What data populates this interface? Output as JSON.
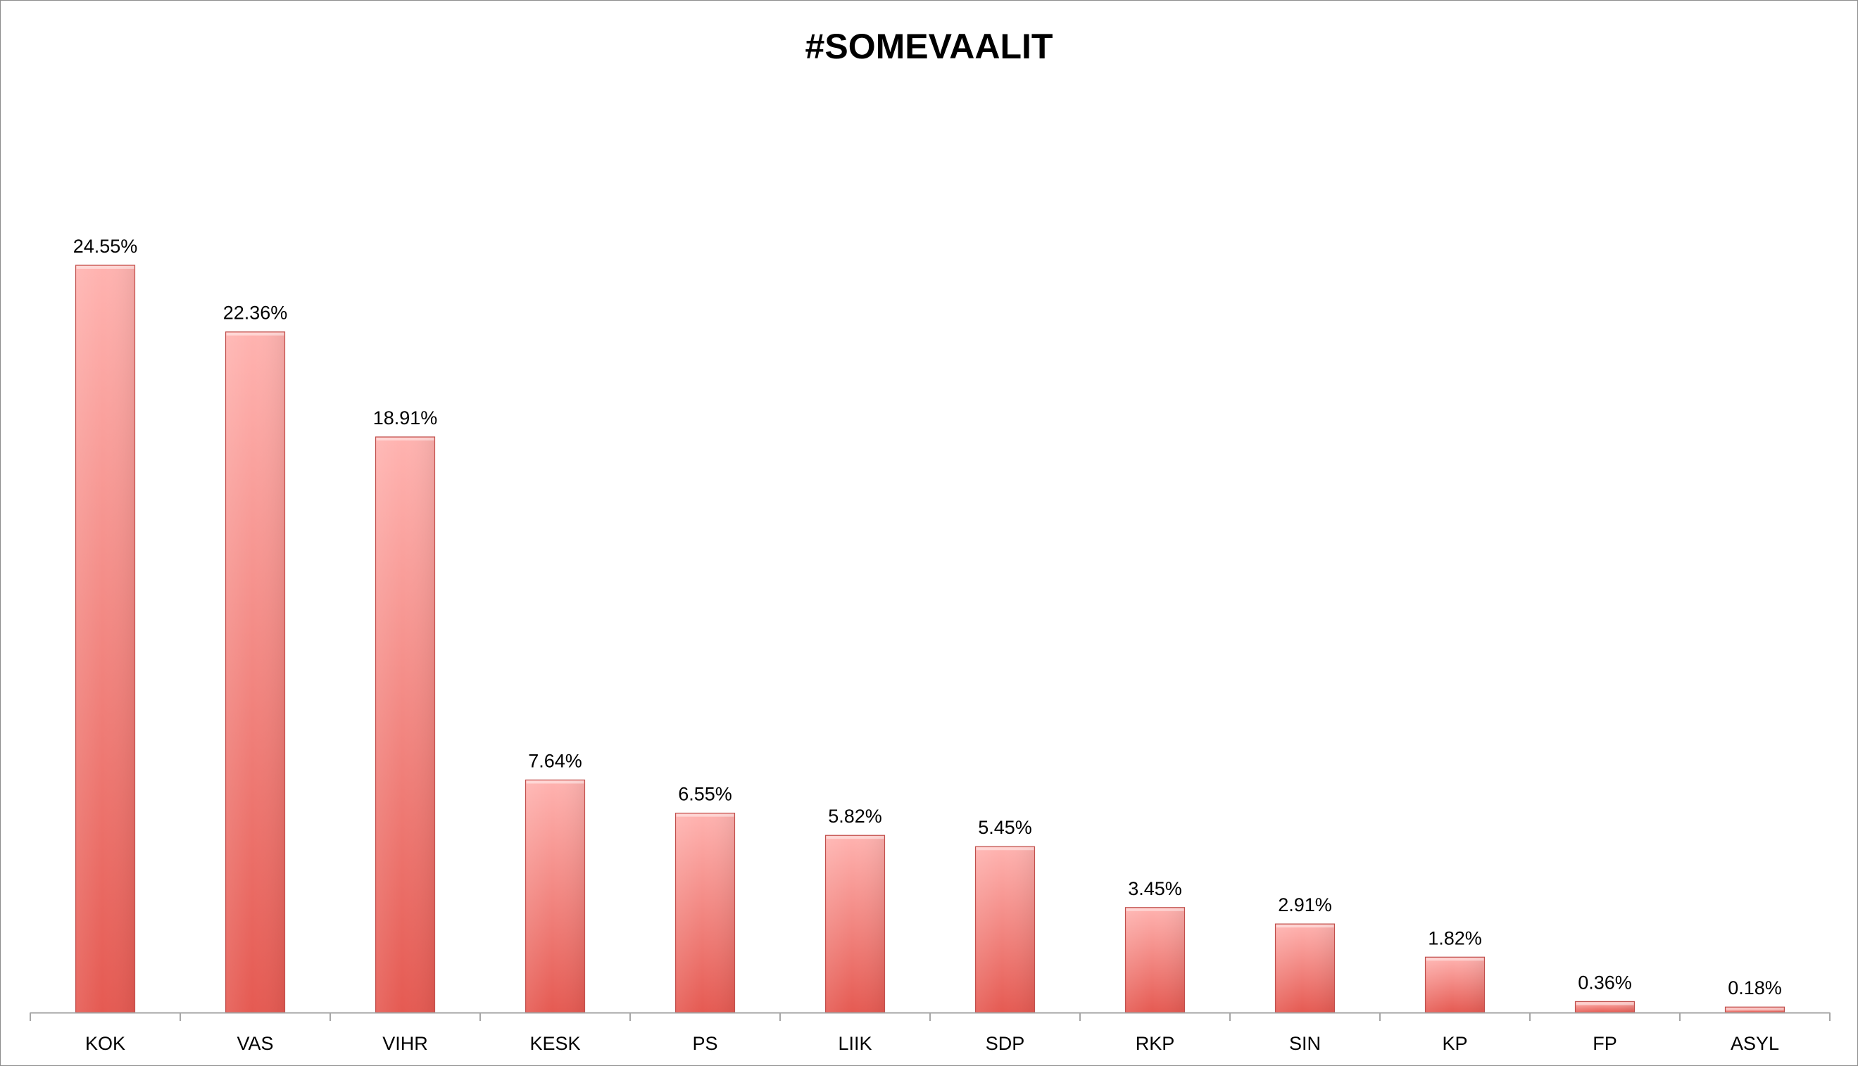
{
  "chart_data": {
    "type": "bar",
    "title": "#SOMEVAALIT",
    "xlabel": "",
    "ylabel": "",
    "categories": [
      "KOK",
      "VAS",
      "VIHR",
      "KESK",
      "PS",
      "LIIK",
      "SDP",
      "RKP",
      "SIN",
      "KP",
      "FP",
      "ASYL"
    ],
    "values": [
      24.55,
      22.36,
      18.91,
      7.64,
      6.55,
      5.82,
      5.45,
      3.45,
      2.91,
      1.82,
      0.36,
      0.18
    ],
    "data_labels": [
      "24.55%",
      "22.36%",
      "18.91%",
      "7.64%",
      "6.55%",
      "5.82%",
      "5.45%",
      "3.45%",
      "2.91%",
      "1.82%",
      "0.36%",
      "0.18%"
    ],
    "ylim": [
      0,
      24.55
    ],
    "grid": false,
    "legend": "none",
    "bar_colors": {
      "top": "#ffb3b0",
      "bottom": "#e55a52",
      "edge": "#c0504d"
    },
    "axis_color": "#a6a6a6"
  }
}
